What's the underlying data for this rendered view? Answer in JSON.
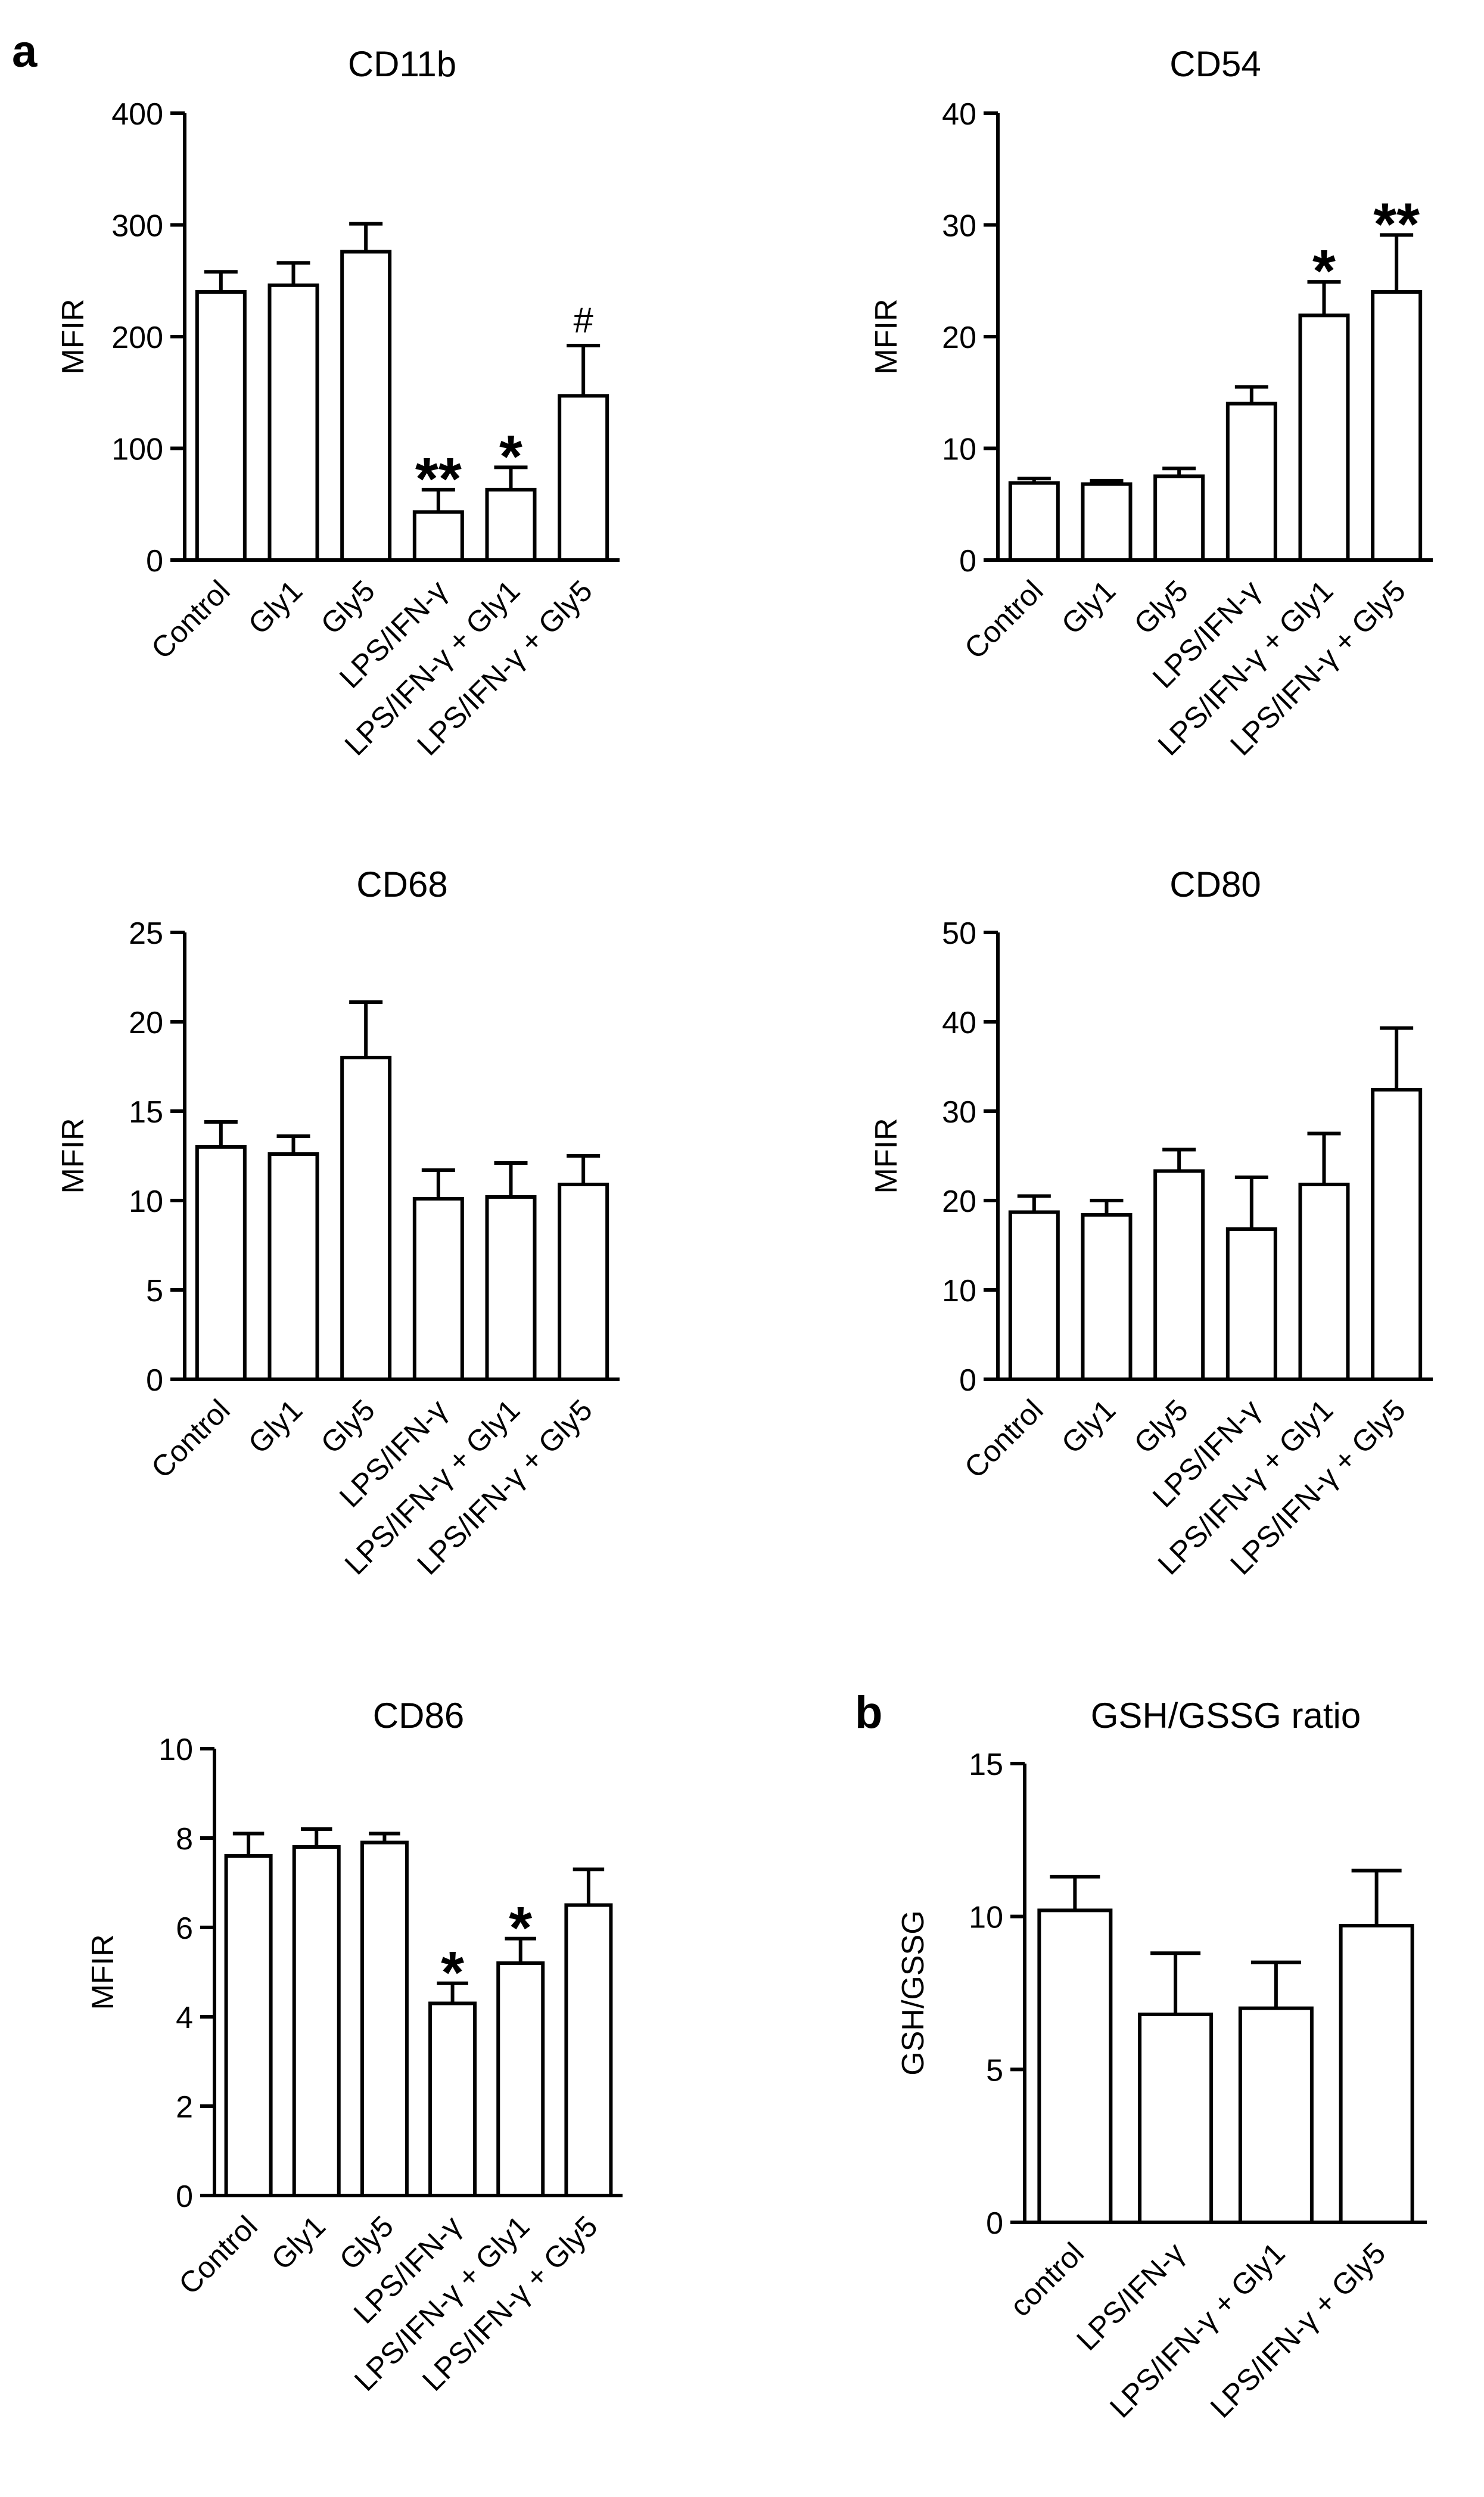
{
  "figure": {
    "panel_labels": [
      "a",
      "b"
    ]
  },
  "chart_data": [
    {
      "type": "bar",
      "panel": "a",
      "title": "CD11b",
      "ylabel": "MFIR",
      "ylim": [
        0,
        400
      ],
      "yticks": [
        0,
        100,
        200,
        300,
        400
      ],
      "categories": [
        "Control",
        "Gly1",
        "Gly5",
        "LPS/IFN-γ",
        "LPS/IFN-γ + Gly1",
        "LPS/IFN-γ + Gly5"
      ],
      "values": [
        240,
        246,
        276,
        43,
        63,
        147
      ],
      "errors": [
        18,
        20,
        25,
        20,
        20,
        45
      ],
      "annotations": [
        "",
        "",
        "",
        "**",
        "*",
        "#"
      ]
    },
    {
      "type": "bar",
      "panel": "",
      "title": "CD54",
      "ylabel": "MFIR",
      "ylim": [
        0,
        40
      ],
      "yticks": [
        0,
        10,
        20,
        30,
        40
      ],
      "categories": [
        "Control",
        "Gly1",
        "Gly5",
        "LPS/IFN-γ",
        "LPS/IFN-γ + Gly1",
        "LPS/IFN-γ + Gly5"
      ],
      "values": [
        6.9,
        6.8,
        7.5,
        14.0,
        21.9,
        24.0
      ],
      "errors": [
        0.4,
        0.3,
        0.7,
        1.5,
        3.0,
        5.1
      ],
      "annotations": [
        "",
        "",
        "",
        "",
        "*",
        "**"
      ]
    },
    {
      "type": "bar",
      "panel": "",
      "title": "CD68",
      "ylabel": "MFIR",
      "ylim": [
        0,
        25
      ],
      "yticks": [
        0,
        5,
        10,
        15,
        20,
        25
      ],
      "categories": [
        "Control",
        "Gly1",
        "Gly5",
        "LPS/IFN-γ",
        "LPS/IFN-γ + Gly1",
        "LPS/IFN-γ + Gly5"
      ],
      "values": [
        13.0,
        12.6,
        18.0,
        10.1,
        10.2,
        10.9
      ],
      "errors": [
        1.4,
        1.0,
        3.1,
        1.6,
        1.9,
        1.6
      ],
      "annotations": [
        "",
        "",
        "",
        "",
        "",
        ""
      ]
    },
    {
      "type": "bar",
      "panel": "",
      "title": "CD80",
      "ylabel": "MFIR",
      "ylim": [
        0,
        50
      ],
      "yticks": [
        0,
        10,
        20,
        30,
        40,
        50
      ],
      "categories": [
        "Control",
        "Gly1",
        "Gly5",
        "LPS/IFN-γ",
        "LPS/IFN-γ + Gly1",
        "LPS/IFN-γ + Gly5"
      ],
      "values": [
        18.7,
        18.4,
        23.3,
        16.8,
        21.8,
        32.4
      ],
      "errors": [
        1.8,
        1.6,
        2.4,
        5.8,
        5.7,
        6.9
      ],
      "annotations": [
        "",
        "",
        "",
        "",
        "",
        ""
      ]
    },
    {
      "type": "bar",
      "panel": "",
      "title": "CD86",
      "ylabel": "MFIR",
      "ylim": [
        0,
        10
      ],
      "yticks": [
        0,
        2,
        4,
        6,
        8,
        10
      ],
      "categories": [
        "Control",
        "Gly1",
        "Gly5",
        "LPS/IFN-γ",
        "LPS/IFN-γ + Gly1",
        "LPS/IFN-γ + Gly5"
      ],
      "values": [
        7.6,
        7.8,
        7.9,
        4.3,
        5.2,
        6.5
      ],
      "errors": [
        0.5,
        0.4,
        0.2,
        0.45,
        0.55,
        0.8
      ],
      "annotations": [
        "",
        "",
        "",
        "*",
        "*",
        ""
      ]
    },
    {
      "type": "bar",
      "panel": "b",
      "title": "GSH/GSSG ratio",
      "ylabel": "GSH/GSSG",
      "ylim": [
        0,
        15
      ],
      "yticks": [
        0,
        5,
        10,
        15
      ],
      "categories": [
        "control",
        "LPS/IFN-γ",
        "LPS/IFN-γ + Gly1",
        "LPS/IFN-γ + Gly5"
      ],
      "values": [
        10.2,
        6.8,
        7.0,
        9.7
      ],
      "errors": [
        1.1,
        2.0,
        1.5,
        1.8
      ],
      "annotations": [
        "",
        "",
        "",
        ""
      ]
    }
  ]
}
